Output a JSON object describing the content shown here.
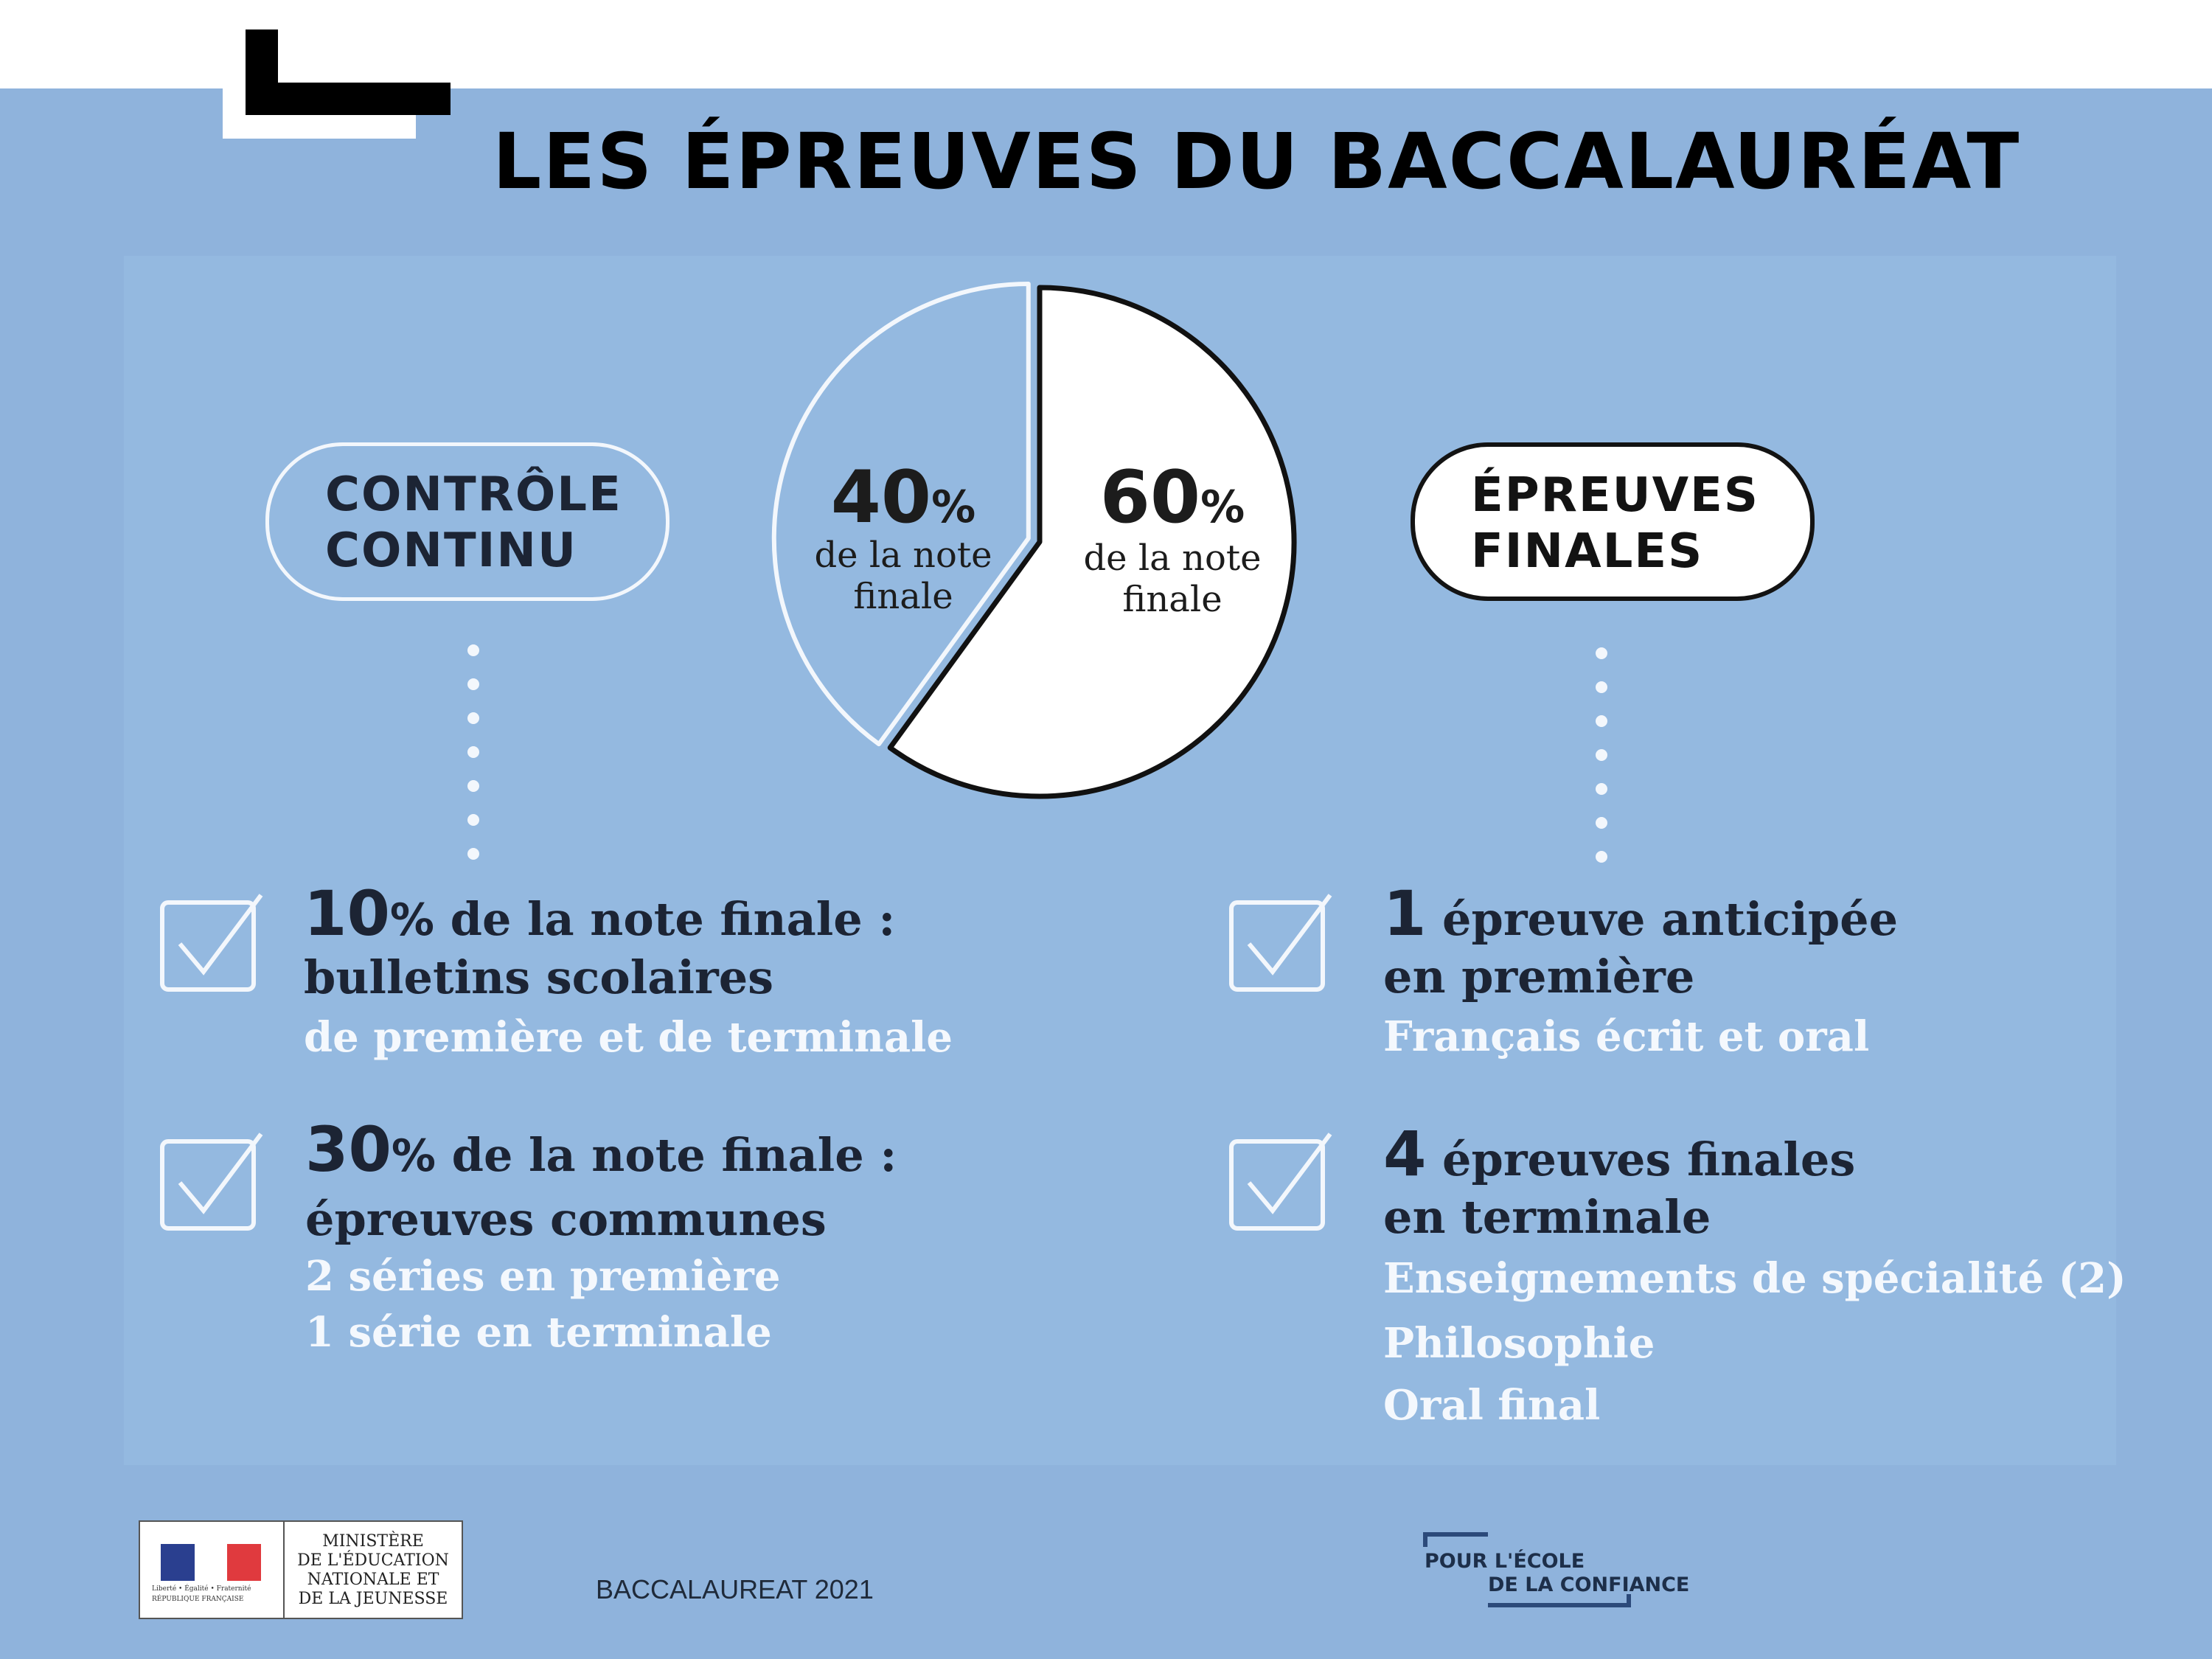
{
  "title": "LES ÉPREUVES DU BACCALAURÉAT",
  "left_block": {
    "pill_line1": "CONTRÔLE",
    "pill_line2": "CONTINU"
  },
  "right_block": {
    "pill_line1": "ÉPREUVES",
    "pill_line2": "FINALES"
  },
  "chart_data": {
    "type": "pie",
    "title": "",
    "slices": [
      {
        "value": 40,
        "label": "40",
        "unit": "%",
        "sub1": "de la note",
        "sub2": "finale",
        "fill": "#94b9e0"
      },
      {
        "value": 60,
        "label": "60",
        "unit": "%",
        "sub1": "de la note",
        "sub2": "finale",
        "fill": "#ffffff"
      }
    ]
  },
  "left_items": [
    {
      "number": "10",
      "unit": "%",
      "rest": " de la note finale :",
      "line2": "bulletins scolaires",
      "subs": [
        "de première et de terminale"
      ]
    },
    {
      "number": "30",
      "unit": "%",
      "rest": " de la note finale :",
      "line2": "épreuves communes",
      "subs": [
        "2 séries en première",
        "1 série en terminale"
      ]
    }
  ],
  "right_items": [
    {
      "number": "1",
      "rest": " épreuve anticipée",
      "line2": "en première",
      "subs": [
        "Français écrit et oral"
      ]
    },
    {
      "number": "4",
      "rest": " épreuves finales",
      "line2": "en terminale",
      "subs": [
        "Enseignements de spécialité (2)",
        "Philosophie",
        "Oral final"
      ]
    }
  ],
  "footer": {
    "ministry_l1": "MINISTÈRE",
    "ministry_l2": "DE L'ÉDUCATION",
    "ministry_l3": "NATIONALE ET",
    "ministry_l4": "DE LA JEUNESSE",
    "motto": "Liberté • Égalité • Fraternité",
    "republic": "RÉPUBLIQUE FRANÇAISE",
    "center_text": "BACCALAUREAT 2021",
    "ecole_l1": "POUR L'ÉCOLE",
    "ecole_l2": "DE LA CONFIANCE"
  },
  "colors": {
    "background": "#8fb3dc",
    "panel": "#94b9e0",
    "text_dark": "#1c2434",
    "text_light": "#f4f8fd"
  },
  "icons": [
    "checkbox-icon",
    "flag-icon"
  ]
}
